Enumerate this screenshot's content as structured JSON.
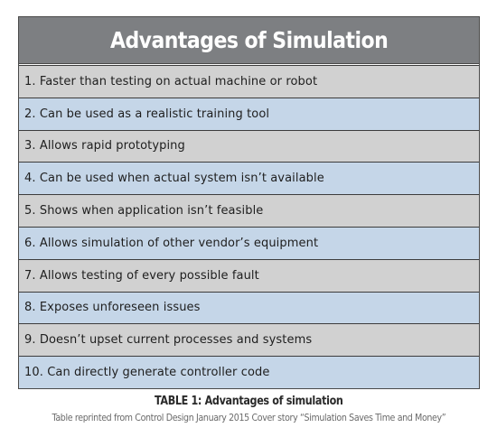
{
  "table": {
    "title": "Advantages of Simulation",
    "colors": {
      "header_bg": "#7d7f82",
      "row_gray": "#d1d1d1",
      "row_blue": "#c5d6e8",
      "border": "#3c3c3c"
    },
    "rows": [
      {
        "text": "1. Faster than testing on actual machine or robot",
        "shade": "gray"
      },
      {
        "text": "2. Can be used as a realistic training tool",
        "shade": "blue"
      },
      {
        "text": "3. Allows rapid prototyping",
        "shade": "gray"
      },
      {
        "text": "4. Can be used when actual system isn’t available",
        "shade": "blue"
      },
      {
        "text": "5. Shows when application isn’t feasible",
        "shade": "gray"
      },
      {
        "text": "6. Allows simulation of other vendor’s equipment",
        "shade": "blue"
      },
      {
        "text": "7. Allows testing of every possible fault",
        "shade": "gray"
      },
      {
        "text": "8. Exposes unforeseen issues",
        "shade": "blue"
      },
      {
        "text": "9. Doesn’t upset current processes and systems",
        "shade": "gray"
      },
      {
        "text": "10. Can directly generate controller code",
        "shade": "blue"
      }
    ]
  },
  "caption": {
    "title": "TABLE 1: Advantages of simulation",
    "credit": "Table reprinted from Control Design January 2015 Cover story “Simulation Saves Time and Money”"
  }
}
